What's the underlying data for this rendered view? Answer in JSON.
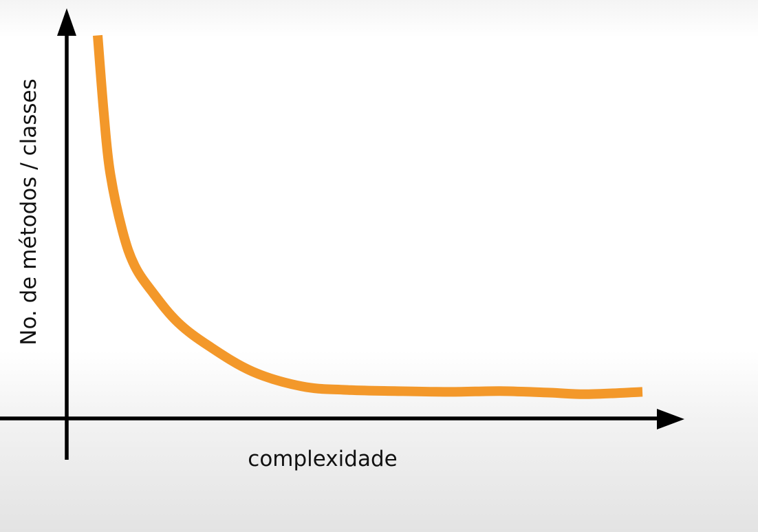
{
  "chart_data": {
    "type": "line",
    "title": "",
    "xlabel": "complexidade",
    "ylabel": "No. de métodos / classes",
    "xlim": [
      0,
      10
    ],
    "ylim": [
      0,
      10
    ],
    "grid": false,
    "legend": "none",
    "series": [
      {
        "name": "",
        "color": "#f3982a",
        "x": [
          0.5,
          0.6,
          0.7,
          0.9,
          1.1,
          1.4,
          1.8,
          2.3,
          3.0,
          3.8,
          4.5,
          5.3,
          6.2,
          7.0,
          7.8,
          8.4,
          9.3
        ],
        "y": [
          9.8,
          7.8,
          6.3,
          4.8,
          3.9,
          3.2,
          2.45,
          1.85,
          1.2,
          0.82,
          0.73,
          0.7,
          0.68,
          0.7,
          0.66,
          0.62,
          0.68
        ]
      }
    ]
  },
  "colors": {
    "curve": "#f3982a",
    "axis": "#000000",
    "text": "#111111"
  }
}
